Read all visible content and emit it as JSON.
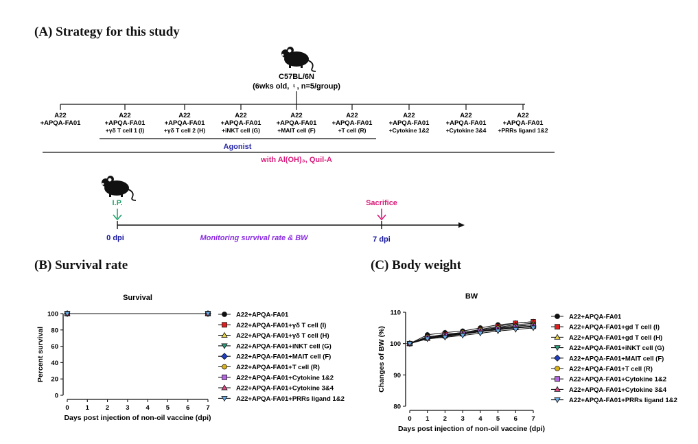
{
  "panel_a": {
    "title": "(A)  Strategy  for  this  study",
    "strain": "C57BL/6N",
    "strain_detail": "(6wks old, ♀, n=5/group)",
    "groups": [
      {
        "line1": "A22",
        "line2": "+APQA-FA01",
        "line3": ""
      },
      {
        "line1": "A22",
        "line2": "+APQA-FA01",
        "line3": "+γδ T cell 1 (I)"
      },
      {
        "line1": "A22",
        "line2": "+APQA-FA01",
        "line3": "+γδ T cell 2 (H)"
      },
      {
        "line1": "A22",
        "line2": "+APQA-FA01",
        "line3": "+iNKT cell (G)"
      },
      {
        "line1": "A22",
        "line2": "+APQA-FA01",
        "line3": "+MAIT cell (F)"
      },
      {
        "line1": "A22",
        "line2": "+APQA-FA01",
        "line3": "+T cell (R)"
      },
      {
        "line1": "A22",
        "line2": "+APQA-FA01",
        "line3": "+Cytokine 1&2"
      },
      {
        "line1": "A22",
        "line2": "+APQA-FA01",
        "line3": "+Cytokine 3&4"
      },
      {
        "line1": "A22",
        "line2": "+APQA-FA01",
        "line3": "+PRRs ligand 1&2"
      }
    ],
    "agonist_label": "Agonist",
    "adjuvant_label": "with Al(OH)₃, Quil-A",
    "ip_label": "I.P.",
    "sacrifice_label": "Sacrifice",
    "start_label": "0 dpi",
    "end_label": "7 dpi",
    "monitor_label": "Monitoring survival rate & BW",
    "colors": {
      "agonist": "#2a2aa8",
      "adjuvant": "#d81b7a",
      "ip": "#21a36b",
      "sacrifice": "#d81b7a",
      "dpi": "#1a1aa0",
      "monitor": "#8a2be2"
    }
  },
  "panel_b": {
    "title": "(B)  Survival  rate"
  },
  "panel_c": {
    "title": "(C)  Body  weight"
  },
  "chart_data": [
    {
      "type": "line",
      "title": "Survival",
      "xlabel": "Days post injection of non-oil vaccine (dpi)",
      "ylabel": "Percent survival",
      "xlim": [
        0,
        7
      ],
      "ylim": [
        0,
        100
      ],
      "x_ticks": [
        0,
        1,
        2,
        3,
        4,
        5,
        6,
        7
      ],
      "y_ticks": [
        0,
        20,
        40,
        60,
        80,
        100
      ],
      "x": [
        0,
        7
      ],
      "series": [
        {
          "name": "A22+APQA-FA01",
          "values": [
            100,
            100
          ]
        },
        {
          "name": "A22+APQA-FA01+γδ T cell (I)",
          "values": [
            100,
            100
          ]
        },
        {
          "name": "A22+APQA-FA01+γδ T cell (H)",
          "values": [
            100,
            100
          ]
        },
        {
          "name": "A22+APQA-FA01+iNKT cell (G)",
          "values": [
            100,
            100
          ]
        },
        {
          "name": "A22+APQA-FA01+MAIT cell (F)",
          "values": [
            100,
            100
          ]
        },
        {
          "name": "A22+APQA-FA01+T cell (R)",
          "values": [
            100,
            100
          ]
        },
        {
          "name": "A22+APQA-FA01+Cytokine 1&2",
          "values": [
            100,
            100
          ]
        },
        {
          "name": "A22+APQA-FA01+Cytokine 3&4",
          "values": [
            100,
            100
          ]
        },
        {
          "name": "A22+APQA-FA01+PRRs ligand 1&2",
          "values": [
            100,
            100
          ]
        }
      ],
      "legend": "right"
    },
    {
      "type": "line",
      "title": "BW",
      "xlabel": "Days post injection of non-oil vaccine (dpi)",
      "ylabel": "Changes of BW (%)",
      "xlim": [
        0,
        7
      ],
      "ylim": [
        80,
        110
      ],
      "x_ticks": [
        0,
        1,
        2,
        3,
        4,
        5,
        6,
        7
      ],
      "y_ticks": [
        80,
        90,
        100,
        110
      ],
      "x": [
        0,
        1,
        2,
        3,
        4,
        5,
        6,
        7
      ],
      "series": [
        {
          "name": "A22+APQA-FA01",
          "values": [
            100,
            102.8,
            103.5,
            104.0,
            105.0,
            106.0,
            106.5,
            107.0
          ]
        },
        {
          "name": "A22+APQA-FA01+gd T cell (I)",
          "values": [
            100,
            102.0,
            103.0,
            103.5,
            104.5,
            105.5,
            106.5,
            107.0
          ]
        },
        {
          "name": "A22+APQA-FA01+gd T cell (H)",
          "values": [
            100,
            101.8,
            102.8,
            103.3,
            104.2,
            105.2,
            106.0,
            106.5
          ]
        },
        {
          "name": "A22+APQA-FA01+iNKT cell (G)",
          "values": [
            100,
            101.5,
            102.5,
            103.0,
            104.0,
            104.8,
            105.5,
            106.0
          ]
        },
        {
          "name": "A22+APQA-FA01+MAIT cell (F)",
          "values": [
            100,
            101.8,
            102.2,
            103.0,
            103.8,
            104.5,
            105.0,
            105.3
          ]
        },
        {
          "name": "A22+APQA-FA01+T cell (R)",
          "values": [
            100,
            102.2,
            102.8,
            103.6,
            104.4,
            105.0,
            105.6,
            106.0
          ]
        },
        {
          "name": "A22+APQA-FA01+Cytokine 1&2",
          "values": [
            100,
            101.8,
            102.6,
            103.2,
            104.0,
            104.6,
            105.2,
            105.6
          ]
        },
        {
          "name": "A22+APQA-FA01+Cytokine 3&4",
          "values": [
            100,
            101.6,
            102.4,
            103.0,
            103.8,
            104.4,
            105.0,
            105.4
          ]
        },
        {
          "name": "A22+APQA-FA01+PRRs ligand 1&2",
          "values": [
            100,
            101.5,
            102.0,
            102.6,
            103.3,
            104.0,
            104.5,
            105.0
          ]
        }
      ],
      "legend": "right"
    }
  ],
  "series_styles": [
    {
      "marker": "circle",
      "color": "#111111"
    },
    {
      "marker": "square",
      "color": "#e02020"
    },
    {
      "marker": "triangle-up",
      "color": "#e8d24a"
    },
    {
      "marker": "triangle-down",
      "color": "#2a9d7a"
    },
    {
      "marker": "diamond",
      "color": "#1f3fbf"
    },
    {
      "marker": "circle",
      "color": "#d9b21a"
    },
    {
      "marker": "square",
      "color": "#b565e0"
    },
    {
      "marker": "triangle-up",
      "color": "#e04a86"
    },
    {
      "marker": "triangle-down",
      "color": "#6aaee8"
    }
  ]
}
